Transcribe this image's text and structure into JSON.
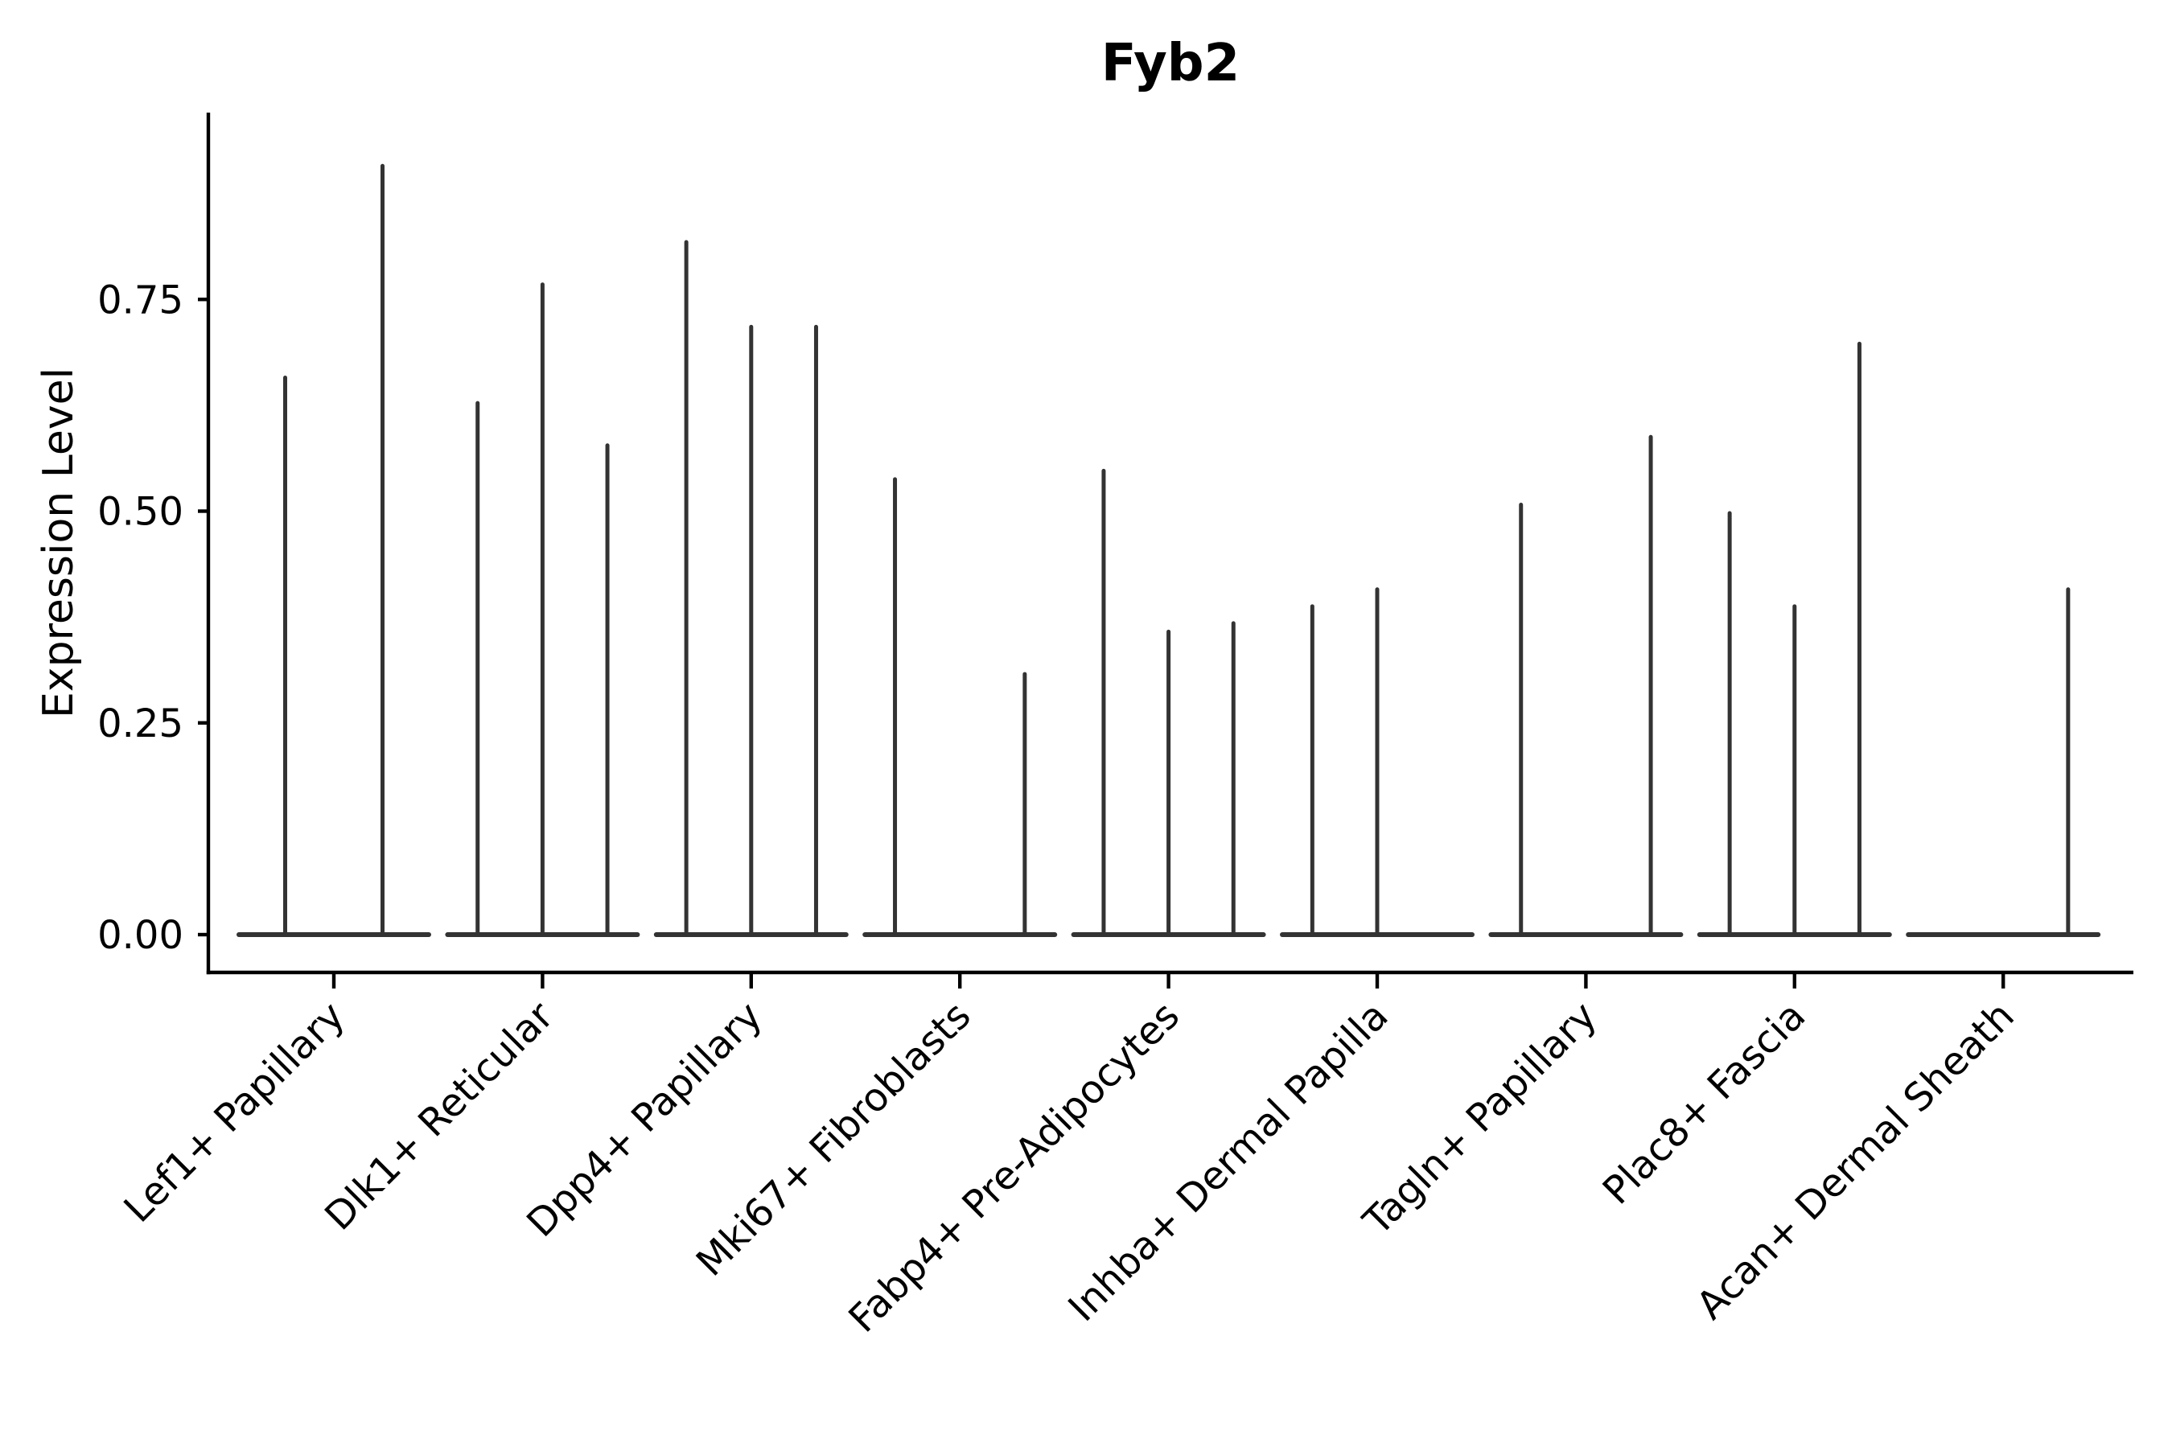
{
  "figure": {
    "title": "Fyb2",
    "ylabel": "Expression Level"
  },
  "chart_data": {
    "type": "violin",
    "title": "Fyb2",
    "xlabel": "",
    "ylabel": "Expression Level",
    "legend_position": "none",
    "grid": false,
    "background_color": "#ffffff",
    "axis_color": "#000000",
    "violin_color": "#333333",
    "text_color": "#000000",
    "ylim": [
      0,
      0.97
    ],
    "yticks": [
      0.0,
      0.25,
      0.5,
      0.75
    ],
    "ytick_labels": [
      "0.00",
      "0.25",
      "0.50",
      "0.75"
    ],
    "xtick_rotation_deg": 45,
    "description": "Violin plot of Fyb2 expression; violins are near-zero-width spikes with flat bases at 0. Each category group contains 2-3 dodged sub-violins; missing slots have a flat base only.",
    "groups": [
      {
        "category": "Lef1+ Papillary",
        "slots": 2,
        "violins": [
          {
            "slot": 0,
            "max_expression": 0.66
          },
          {
            "slot": 1,
            "max_expression": 0.91
          }
        ]
      },
      {
        "category": "Dlk1+ Reticular",
        "slots": 3,
        "violins": [
          {
            "slot": 0,
            "max_expression": 0.63
          },
          {
            "slot": 1,
            "max_expression": 0.77
          },
          {
            "slot": 2,
            "max_expression": 0.58
          }
        ]
      },
      {
        "category": "Dpp4+ Papillary",
        "slots": 3,
        "violins": [
          {
            "slot": 0,
            "max_expression": 0.82
          },
          {
            "slot": 1,
            "max_expression": 0.72
          },
          {
            "slot": 2,
            "max_expression": 0.72
          }
        ]
      },
      {
        "category": "Mki67+ Fibroblasts",
        "slots": 3,
        "violins": [
          {
            "slot": 0,
            "max_expression": 0.54
          },
          {
            "slot": 2,
            "max_expression": 0.31
          }
        ]
      },
      {
        "category": "Fabp4+ Pre-Adipocytes",
        "slots": 3,
        "violins": [
          {
            "slot": 0,
            "max_expression": 0.55
          },
          {
            "slot": 1,
            "max_expression": 0.36
          },
          {
            "slot": 2,
            "max_expression": 0.37
          }
        ]
      },
      {
        "category": "Inhba+ Dermal Papilla",
        "slots": 3,
        "violins": [
          {
            "slot": 0,
            "max_expression": 0.39
          },
          {
            "slot": 1,
            "max_expression": 0.41
          }
        ]
      },
      {
        "category": "Tagln+ Papillary",
        "slots": 3,
        "violins": [
          {
            "slot": 0,
            "max_expression": 0.51
          },
          {
            "slot": 2,
            "max_expression": 0.59
          }
        ]
      },
      {
        "category": "Plac8+ Fascia",
        "slots": 3,
        "violins": [
          {
            "slot": 0,
            "max_expression": 0.5
          },
          {
            "slot": 1,
            "max_expression": 0.39
          },
          {
            "slot": 2,
            "max_expression": 0.7
          }
        ]
      },
      {
        "category": "Acan+ Dermal Sheath",
        "slots": 3,
        "violins": [
          {
            "slot": 2,
            "max_expression": 0.41
          }
        ]
      }
    ]
  }
}
